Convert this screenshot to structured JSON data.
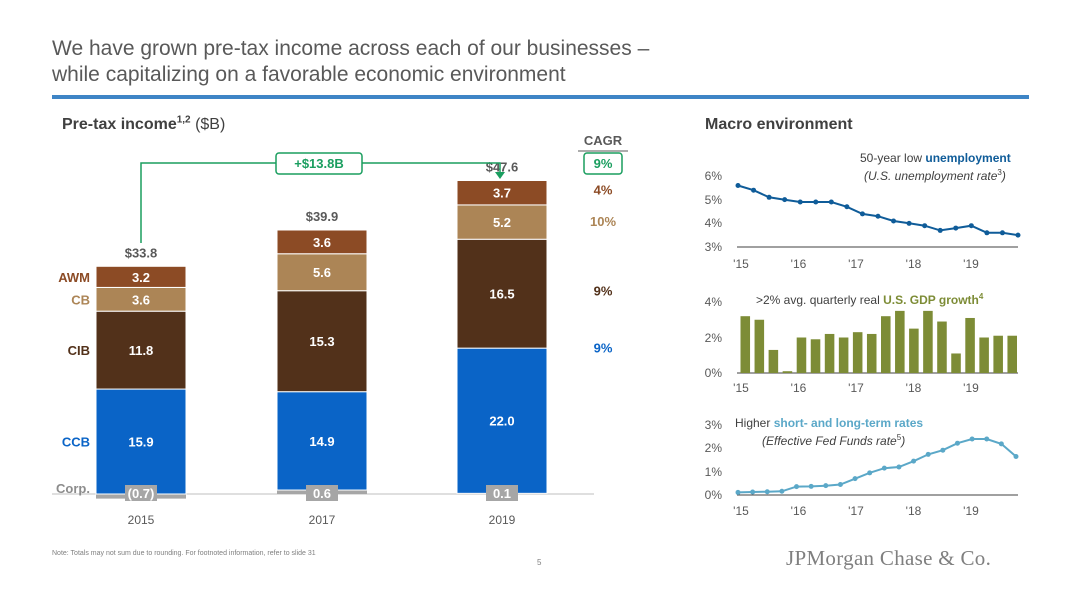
{
  "slide": {
    "title_line1": "We have grown pre-tax income across each of our businesses –",
    "title_line2": "while capitalizing on a favorable economic environment",
    "footnote": "Note: Totals may not sum due to rounding. For footnoted information, refer to slide 31",
    "page_number": "5",
    "logo_text": "JPMorgan Chase & Co.",
    "accent_color": "#3e85c6"
  },
  "left_section": {
    "title": "Pre-tax income",
    "title_sup": "1,2",
    "unit": "($B)"
  },
  "right_section": {
    "title": "Macro environment",
    "unemployment_note_prefix": "50-year low ",
    "unemployment_note_bold": "unemployment",
    "unemployment_note_sub_pre": "(U.S. unemployment rate",
    "unemployment_note_sub_sup": "3",
    "unemployment_note_sub_post": ")",
    "gdp_note_prefix": ">2% avg. quarterly real ",
    "gdp_note_bold": "U.S. GDP growth",
    "gdp_note_sup": "4",
    "rates_note_prefix": "Higher ",
    "rates_note_bold": "short- and long-term rates",
    "rates_note_sub_pre": "(Effective Fed Funds rate",
    "rates_note_sub_sup": "5",
    "rates_note_sub_post": ")"
  },
  "chart_data": [
    {
      "type": "bar",
      "stacked": true,
      "categories": [
        "2015",
        "2017",
        "2019"
      ],
      "totals": [
        "$33.8",
        "$39.9",
        "$47.6"
      ],
      "series": [
        {
          "name": "Corp.",
          "values": [
            -0.7,
            0.6,
            0.1
          ],
          "labels": [
            "(0.7)",
            "0.6",
            "0.1"
          ],
          "color": "#a6a6a6"
        },
        {
          "name": "CCB",
          "values": [
            15.9,
            14.9,
            22.0
          ],
          "labels": [
            "15.9",
            "14.9",
            "22.0"
          ],
          "color": "#0a64c7",
          "cagr": "9%"
        },
        {
          "name": "CIB",
          "values": [
            11.8,
            15.3,
            16.5
          ],
          "labels": [
            "11.8",
            "15.3",
            "16.5"
          ],
          "color": "#52311a",
          "cagr": "9%"
        },
        {
          "name": "CB",
          "values": [
            3.6,
            5.6,
            5.2
          ],
          "labels": [
            "3.6",
            "5.6",
            "5.2"
          ],
          "color": "#ac8556",
          "cagr": "10%"
        },
        {
          "name": "AWM",
          "values": [
            3.2,
            3.6,
            3.7
          ],
          "labels": [
            "3.2",
            "3.6",
            "3.7"
          ],
          "color": "#8c4b25",
          "cagr": "4%"
        }
      ],
      "cagr_header": "CAGR",
      "total_cagr": "9%",
      "increase_label": "+$13.8B",
      "ylim": [
        -0.7,
        48
      ]
    },
    {
      "type": "line",
      "series_name": "U.S. unemployment rate",
      "color": "#0f5c99",
      "x_ticks": [
        "'15",
        "'16",
        "'17",
        "'18",
        "'19"
      ],
      "y_ticks": [
        "6%",
        "5%",
        "4%",
        "3%"
      ],
      "ylim": [
        3,
        6
      ],
      "values": [
        5.6,
        5.4,
        5.1,
        5.0,
        4.9,
        4.9,
        4.9,
        4.7,
        4.4,
        4.3,
        4.1,
        4.0,
        3.9,
        3.7,
        3.8,
        3.9,
        3.6,
        3.6,
        3.5
      ]
    },
    {
      "type": "bar",
      "series_name": "U.S. GDP growth",
      "color": "#7d8c36",
      "x_ticks": [
        "'15",
        "'16",
        "'17",
        "'18",
        "'19"
      ],
      "y_ticks": [
        "4%",
        "2%",
        "0%"
      ],
      "ylim": [
        0,
        4
      ],
      "values": [
        3.2,
        3.0,
        1.3,
        0.1,
        2.0,
        1.9,
        2.2,
        2.0,
        2.3,
        2.2,
        3.2,
        3.5,
        2.5,
        3.5,
        2.9,
        1.1,
        3.1,
        2.0,
        2.1,
        2.1
      ]
    },
    {
      "type": "line",
      "series_name": "Effective Fed Funds rate",
      "color": "#5ba8c8",
      "x_ticks": [
        "'15",
        "'16",
        "'17",
        "'18",
        "'19"
      ],
      "y_ticks": [
        "3%",
        "2%",
        "1%",
        "0%"
      ],
      "ylim": [
        0,
        3
      ],
      "values": [
        0.11,
        0.13,
        0.14,
        0.16,
        0.36,
        0.37,
        0.4,
        0.45,
        0.7,
        0.95,
        1.15,
        1.2,
        1.45,
        1.74,
        1.92,
        2.22,
        2.4,
        2.4,
        2.19,
        1.65
      ]
    }
  ]
}
